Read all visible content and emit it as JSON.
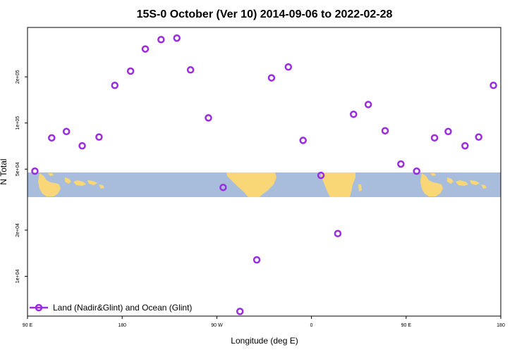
{
  "chart_data": {
    "type": "scatter",
    "title": "15S-0 October (Ver 10)   2014-09-06 to 2022-02-28",
    "xlabel": "Longitude (deg E)",
    "ylabel": "N Total",
    "x_scale": "longitude, centered on 0, from 90 E through 180 to 180",
    "xlim": [
      90,
      540
    ],
    "x_ticks": [
      {
        "value": 90,
        "label": "90 E"
      },
      {
        "value": 180,
        "label": "180"
      },
      {
        "value": 270,
        "label": "90 W"
      },
      {
        "value": 360,
        "label": "0"
      },
      {
        "value": 450,
        "label": "90 E"
      },
      {
        "value": 540,
        "label": "180"
      }
    ],
    "y_scale": "log",
    "ylim": [
      5500,
      420000
    ],
    "y_ticks": [
      {
        "value": 10000,
        "label": "1e+04"
      },
      {
        "value": 20000,
        "label": "2e+04"
      },
      {
        "value": 50000,
        "label": "5e+04"
      },
      {
        "value": 100000,
        "label": "1e+05"
      },
      {
        "value": 200000,
        "label": "2e+05"
      }
    ],
    "grid": false,
    "legend_position": "bottom-left",
    "series": [
      {
        "name": "Land (Nadir&Glint) and Ocean (Glint)",
        "color": "#9b2be0",
        "marker": "open-circle",
        "points": [
          {
            "x": 97,
            "y": 48500
          },
          {
            "x": 113,
            "y": 80000
          },
          {
            "x": 127,
            "y": 88000
          },
          {
            "x": 142,
            "y": 71000
          },
          {
            "x": 158,
            "y": 81000
          },
          {
            "x": 173,
            "y": 176000
          },
          {
            "x": 188,
            "y": 218000
          },
          {
            "x": 202,
            "y": 304000
          },
          {
            "x": 217,
            "y": 350000
          },
          {
            "x": 232,
            "y": 358000
          },
          {
            "x": 245,
            "y": 222000
          },
          {
            "x": 262,
            "y": 108000
          },
          {
            "x": 276,
            "y": 38000
          },
          {
            "x": 292,
            "y": 5900
          },
          {
            "x": 308,
            "y": 12800
          },
          {
            "x": 322,
            "y": 197000
          },
          {
            "x": 338,
            "y": 232000
          },
          {
            "x": 352,
            "y": 77000
          },
          {
            "x": 369,
            "y": 45500
          },
          {
            "x": 385,
            "y": 19000
          },
          {
            "x": 400,
            "y": 114000
          },
          {
            "x": 414,
            "y": 132000
          },
          {
            "x": 430,
            "y": 89000
          },
          {
            "x": 445,
            "y": 54000
          },
          {
            "x": 460,
            "y": 48500
          },
          {
            "x": 477,
            "y": 80000
          },
          {
            "x": 490,
            "y": 88000
          },
          {
            "x": 506,
            "y": 71000
          },
          {
            "x": 519,
            "y": 81000
          },
          {
            "x": 533,
            "y": 176000
          }
        ]
      }
    ]
  },
  "colors": {
    "ocean": "#a7bddb",
    "land": "#f9d776",
    "marker": "#9b2be0"
  }
}
